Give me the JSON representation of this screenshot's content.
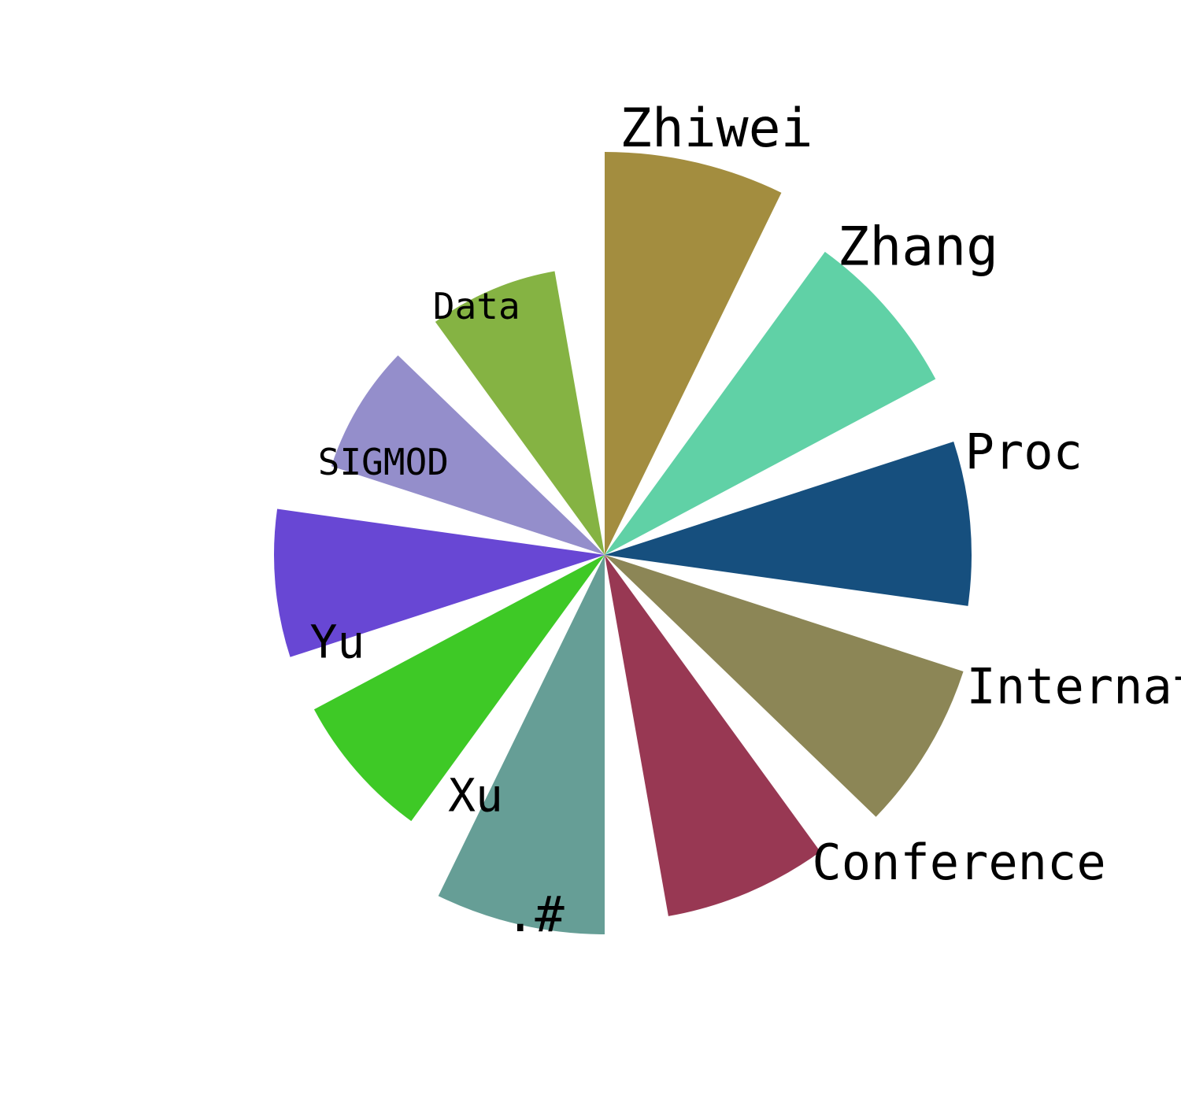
{
  "chart_data": {
    "type": "bar",
    "subtype": "radial",
    "categories": [
      "Zhiwei",
      "Zhang",
      "Proc",
      "Internatio",
      "Conference",
      ".#",
      "Xu",
      "Yu",
      "SIGMOD",
      "Data"
    ],
    "values": [
      512,
      476,
      466,
      479,
      466,
      482,
      418,
      420,
      365,
      366
    ],
    "colors": [
      "#a38d3f",
      "#60d1a6",
      "#164f7e",
      "#8c8656",
      "#983853",
      "#669e96",
      "#3ec926",
      "#6847d4",
      "#948ecb",
      "#85b343"
    ],
    "angles_deg": [
      0,
      36,
      72,
      108,
      144,
      180,
      216,
      252,
      288,
      324
    ],
    "angular_width_deg": 26,
    "rlim": [
      0,
      512
    ],
    "grid": false,
    "legend": "none"
  }
}
